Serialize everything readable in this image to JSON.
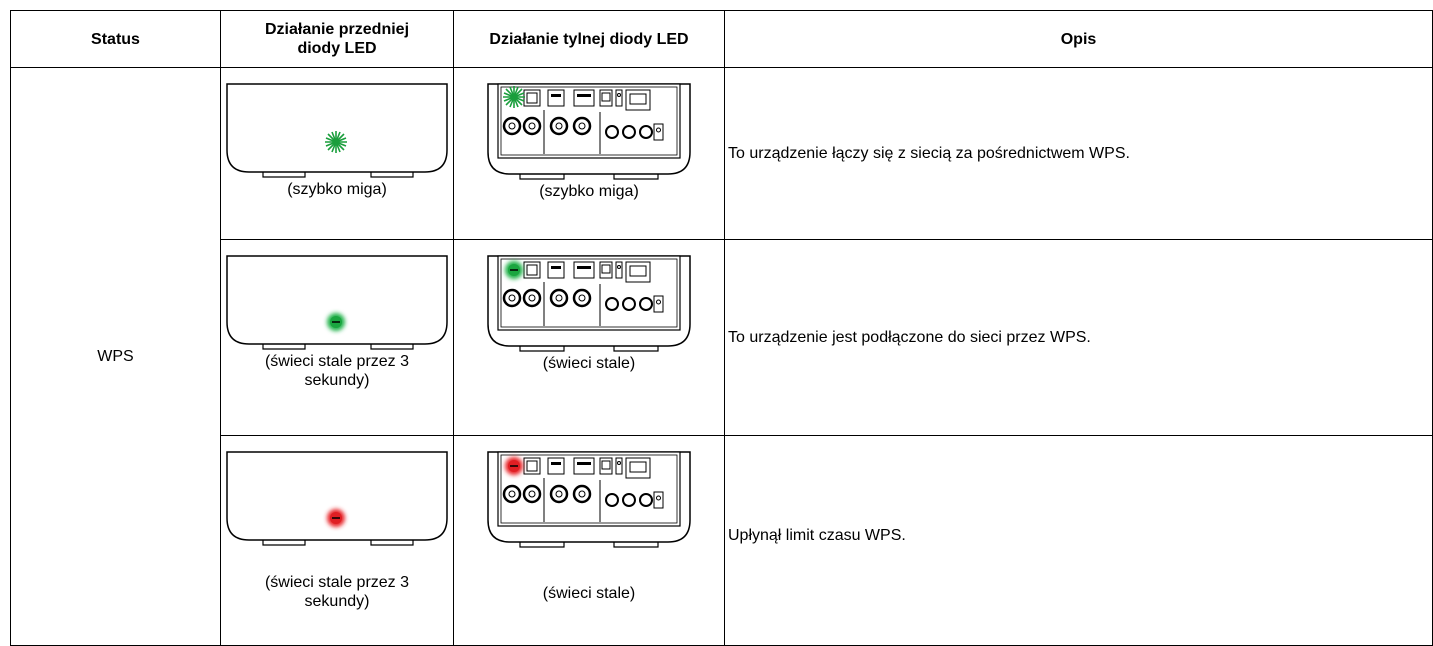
{
  "table": {
    "header": [
      "Status",
      "Działanie przedniej diody LED",
      "Działanie tylnej diody LED",
      "Opis"
    ],
    "status": "WPS",
    "rows": [
      {
        "front": "(szybko miga)",
        "rear": "(szybko miga)",
        "description": "To urządzenie łączy się z siecią za pośrednictwem WPS."
      },
      {
        "front": "(świeci stale przez 3 sekundy)",
        "rear": "(świeci stale)",
        "description": "To urządzenie jest podłączone do sieci przez WPS."
      },
      {
        "front": "(świeci stale przez 3 sekundy)",
        "rear": "(świeci stale)",
        "description": "Upłynął limit czasu WPS."
      }
    ]
  }
}
